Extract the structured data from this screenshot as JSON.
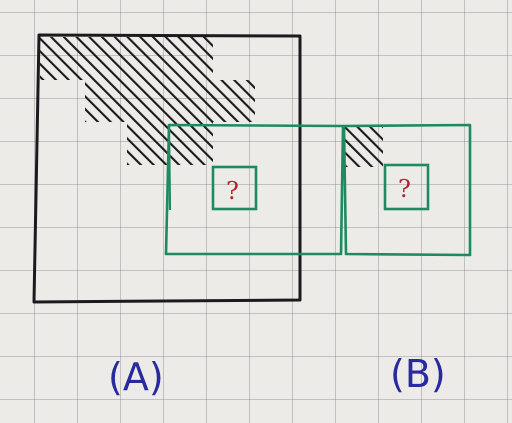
{
  "colors": {
    "ink_black": "#1b1b1f",
    "ink_green": "#1f8a5f",
    "ink_red": "#b3222b",
    "ink_blue": "#2a2aa0"
  },
  "labels": {
    "a": "(A)",
    "b": "(B)",
    "question_a": "?",
    "question_b": "?"
  }
}
